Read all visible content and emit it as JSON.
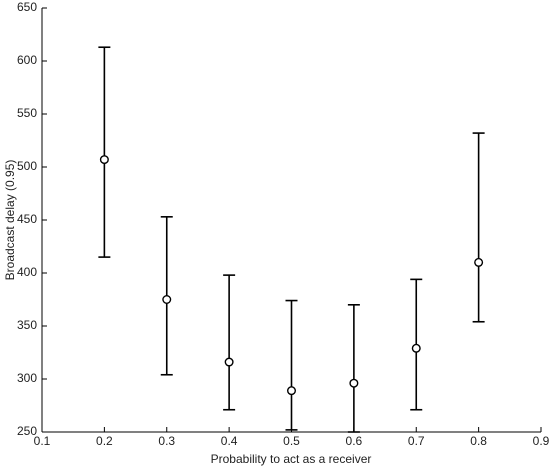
{
  "chart_data": {
    "type": "errorbar",
    "xlabel": "Probability to act as a receiver",
    "ylabel": "Broadcast delay (0.95)",
    "x": [
      0.2,
      0.3,
      0.4,
      0.5,
      0.6,
      0.7,
      0.8
    ],
    "series": [
      {
        "color": "#000000",
        "values": [
          507,
          375,
          316,
          289,
          296,
          329,
          410
        ],
        "lower": [
          415,
          304,
          271,
          252,
          250,
          271,
          354
        ],
        "upper": [
          613,
          453,
          398,
          374,
          370,
          394,
          532
        ]
      }
    ],
    "xlim": [
      0.1,
      0.9
    ],
    "xticks": [
      0.1,
      0.2,
      0.3,
      0.4,
      0.5,
      0.6,
      0.7,
      0.8,
      0.9
    ],
    "ylim": [
      250,
      650
    ],
    "yticks": [
      250,
      300,
      350,
      400,
      450,
      500,
      550,
      600,
      650
    ]
  }
}
